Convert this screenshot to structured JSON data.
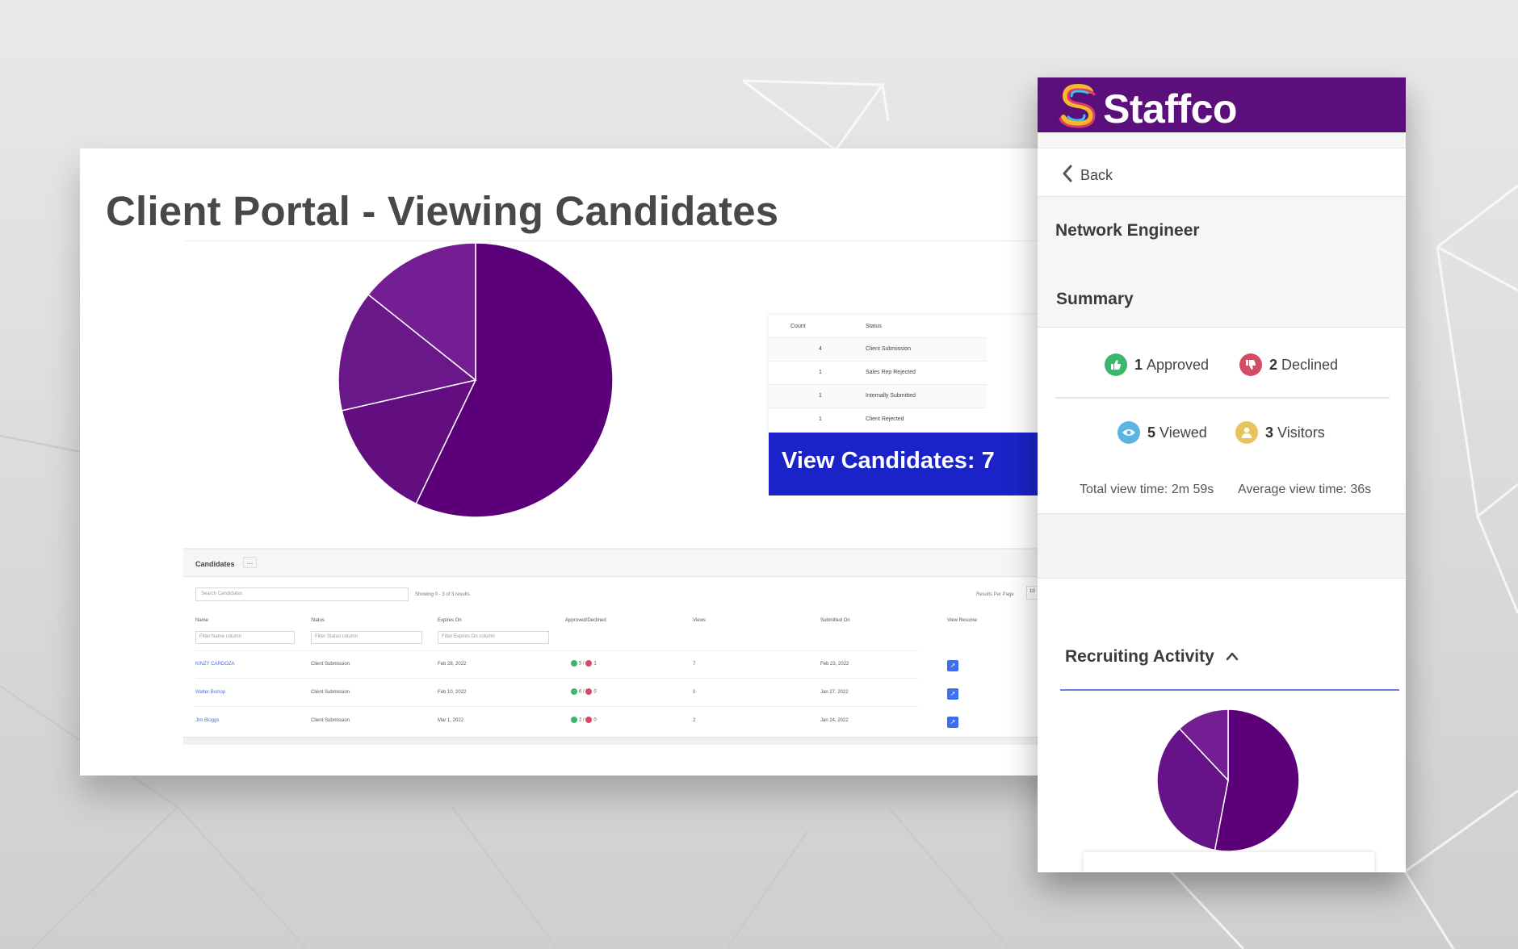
{
  "slide": {
    "title": "Client Portal - Viewing Candidates"
  },
  "colors": {
    "brand_purple": "#5a0f7a",
    "pie_slices": [
      "#5b0078",
      "#620e80",
      "#6a1889",
      "#731f93"
    ],
    "view_banner": "#1a23c8",
    "approved_green": "#3cb66b",
    "declined_red": "#d24c63",
    "viewed_blue": "#5ab6e0",
    "visitors_yellow": "#e9c35c",
    "accent_rule": "#6b7fe0"
  },
  "main_pie": {
    "slices": [
      {
        "value": 4,
        "color": "#5b0078"
      },
      {
        "value": 1,
        "color": "#620e80"
      },
      {
        "value": 1,
        "color": "#6a1889"
      },
      {
        "value": 1,
        "color": "#731f93"
      }
    ]
  },
  "status_table": {
    "headers": {
      "count": "Count",
      "status": "Status"
    },
    "rows": [
      {
        "count": "4",
        "status": "Client Submission"
      },
      {
        "count": "1",
        "status": "Sales Rep Rejected"
      },
      {
        "count": "1",
        "status": "Internally Submitted"
      },
      {
        "count": "1",
        "status": "Client Rejected"
      }
    ]
  },
  "view_candidates": {
    "label": "View Candidates: 7"
  },
  "candidates": {
    "title": "Candidates",
    "more_label": "...",
    "search_placeholder": "Search Candidates",
    "showing": "Showing 0 - 3 of 3 results",
    "results_per_page_label": "Results Per Page",
    "results_per_page_value": "10",
    "columns": {
      "name": "Name",
      "status": "Status",
      "expires": "Expires On",
      "approved": "Approved/Declined",
      "views": "Views",
      "submitted": "Submitted On",
      "resume": "View Resume"
    },
    "filters": {
      "name": "Filter Name column",
      "status": "Filter Status column",
      "expires": "Filter Expires On column"
    },
    "rows": [
      {
        "name": "KINZY CARDOZA",
        "status": "Client Submission",
        "expires": "Feb 28, 2022",
        "approved": "5",
        "declined": "1",
        "views": "7",
        "submitted": "Feb 23, 2022"
      },
      {
        "name": "Walter Bishop",
        "status": "Client Submission",
        "expires": "Feb 10, 2022",
        "approved": "6",
        "declined": "0",
        "views": "0",
        "submitted": "Jan 27, 2022"
      },
      {
        "name": "Jim Bloggs",
        "status": "Client Submission",
        "expires": "Mar 1, 2022",
        "approved": "2",
        "declined": "0",
        "views": "2",
        "submitted": "Jan 24, 2022"
      }
    ]
  },
  "mobile": {
    "brand": "Staffco",
    "back_label": "Back",
    "job_title": "Network Engineer",
    "summary_title": "Summary",
    "stats": {
      "approved_count": "1",
      "approved_label": "Approved",
      "declined_count": "2",
      "declined_label": "Declined",
      "viewed_count": "5",
      "viewed_label": "Viewed",
      "visitors_count": "3",
      "visitors_label": "Visitors"
    },
    "total_view_time": "Total view time: 2m 59s",
    "average_view_time": "Average view time: 36s",
    "recruiting_title": "Recruiting Activity"
  },
  "mini_pie": {
    "slices": [
      {
        "value": 53,
        "color": "#5b0078"
      },
      {
        "value": 35,
        "color": "#66138a"
      },
      {
        "value": 12,
        "color": "#731f93"
      }
    ]
  }
}
